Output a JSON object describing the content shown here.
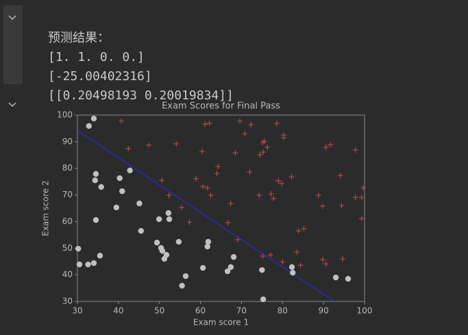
{
  "output": {
    "heading": "预测结果：",
    "lines": [
      "[1. 1. 0. 0.]",
      "[-25.00402316]",
      "[[0.20498193 0.20019834]]"
    ]
  },
  "chart_data": {
    "type": "scatter",
    "title": "Exam Scores for Final Pass",
    "x_label": "Exam score 1",
    "y_label": "Exam score 2",
    "xlim": [
      30,
      100
    ],
    "ylim": [
      30,
      100
    ],
    "xticks": [
      30,
      40,
      50,
      60,
      70,
      80,
      90,
      100
    ],
    "yticks": [
      30,
      40,
      50,
      60,
      70,
      80,
      90,
      100
    ],
    "grid": false,
    "series": [
      {
        "marker": "o",
        "color": "#c0c0c0",
        "x": [
          30.2,
          30.5,
          34.0,
          32.8,
          34.5,
          34.3,
          35.8,
          34.5,
          35.5,
          34.0,
          32.6,
          40.3,
          40.9,
          42.8,
          39.5,
          45.1,
          45.5,
          49.9,
          52.2,
          52.4,
          49.4,
          50.4,
          50.7,
          51.7,
          51.2,
          54.7,
          56.4,
          55.5,
          61.9,
          61.7,
          60.6,
          68.1,
          67.4,
          66.6,
          75.0,
          75.3,
          82.3,
          82.5,
          93.0,
          96.0
        ],
        "values": [
          49.8,
          43.9,
          98.7,
          95.9,
          77.9,
          75.5,
          73.0,
          60.6,
          47.2,
          44.4,
          43.9,
          76.3,
          71.4,
          79.2,
          65.3,
          66.8,
          56.5,
          60.9,
          63.2,
          60.9,
          52.1,
          50.1,
          49.0,
          47.5,
          46.0,
          52.4,
          39.5,
          35.9,
          52.4,
          50.6,
          42.6,
          46.7,
          42.9,
          41.3,
          41.8,
          30.8,
          42.9,
          40.8,
          39.0,
          38.5
        ]
      },
      {
        "marker": "+",
        "color": "#c8504f",
        "x": [
          40.7,
          42.4,
          47.4,
          54.1,
          50.6,
          52.3,
          55.4,
          57.3,
          58.9,
          60.4,
          61.1,
          62.2,
          60.6,
          61.7,
          62.5,
          64.0,
          64.3,
          66.7,
          67.4,
          68.5,
          69.1,
          69.6,
          70.8,
          72.3,
          72.0,
          74.5,
          75.2,
          75.6,
          75.3,
          76.3,
          74.3,
          77.2,
          77.8,
          77.1,
          75.2,
          78.6,
          79.0,
          79.8,
          80.3,
          80.3,
          80.0,
          82.2,
          83.5,
          83.9,
          84.4,
          85.2,
          88.8,
          89.8,
          89.8,
          90.6,
          90.6,
          91.7,
          94.1,
          94.4,
          94.7,
          97.8,
          97.8,
          99.7,
          99.3,
          99.3
        ],
        "values": [
          97.7,
          87.4,
          88.7,
          89.2,
          75.5,
          69.9,
          65.3,
          59.8,
          76.1,
          86.4,
          96.6,
          96.9,
          73.2,
          72.7,
          69.9,
          78.1,
          80.7,
          59.6,
          66.8,
          85.8,
          53.2,
          97.7,
          93.0,
          96.4,
          78.6,
          85.1,
          89.7,
          90.2,
          86.1,
          87.9,
          69.9,
          70.4,
          68.6,
          47.5,
          47.0,
          96.9,
          75.3,
          74.3,
          92.5,
          91.5,
          44.9,
          76.8,
          48.5,
          56.5,
          43.6,
          57.3,
          69.9,
          65.8,
          45.7,
          44.1,
          87.9,
          88.9,
          77.3,
          66.0,
          46.0,
          86.9,
          69.1,
          72.7,
          69.1,
          61.1
        ]
      },
      {
        "type": "line",
        "color": "#2a2ad0",
        "x": [
          30,
          100
        ],
        "values": [
          94.18,
          22.51
        ]
      }
    ]
  }
}
